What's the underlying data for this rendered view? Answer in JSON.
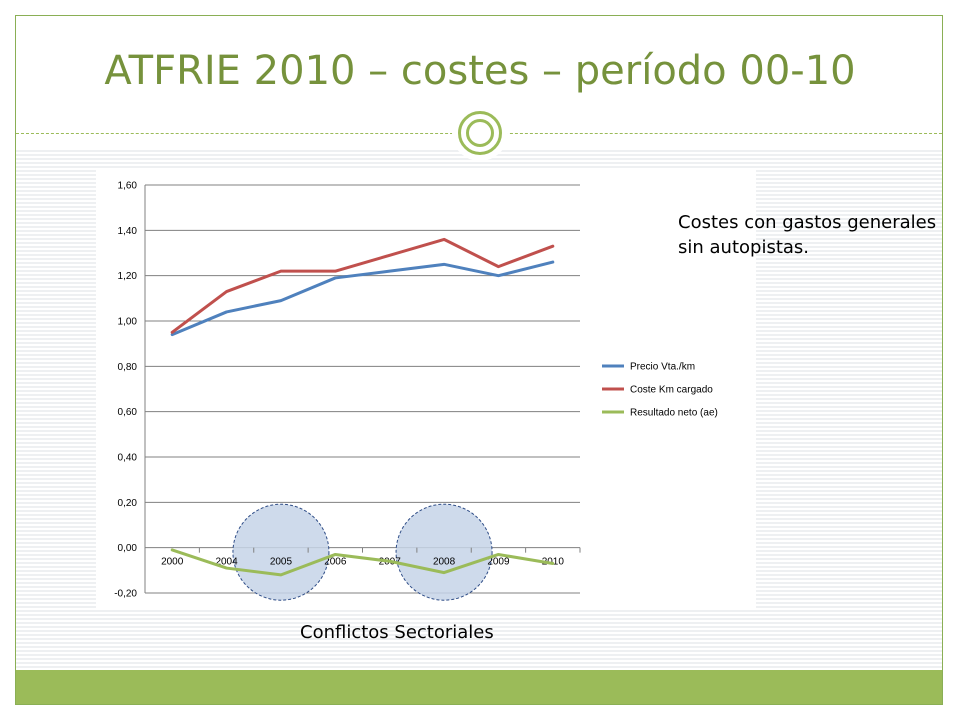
{
  "slide": {
    "title": "ATFRIE 2010 – costes – período 00-10",
    "note": "Costes con gastos generales sin autopistas.",
    "caption": "Conflictos Sectoriales",
    "accent_color": "#9bbb59",
    "title_color": "#76923c"
  },
  "chart_data": {
    "type": "line",
    "categories": [
      "2000",
      "2004",
      "2005",
      "2006",
      "2007",
      "2008",
      "2009",
      "2010"
    ],
    "ylim": [
      -0.2,
      1.6
    ],
    "y_ticks": [
      "-0,20",
      "0,00",
      "0,20",
      "0,40",
      "0,60",
      "0,80",
      "1,00",
      "1,20",
      "1,40",
      "1,60"
    ],
    "y_tick_values": [
      -0.2,
      0,
      0.2,
      0.4,
      0.6,
      0.8,
      1.0,
      1.2,
      1.4,
      1.6
    ],
    "grid": true,
    "legend_position": "right",
    "series": [
      {
        "name": "Precio Vta./km",
        "color": "#4f81bd",
        "values": [
          0.94,
          1.04,
          1.09,
          1.19,
          1.22,
          1.25,
          1.2,
          1.26
        ]
      },
      {
        "name": "Coste Km cargado",
        "color": "#c0504d",
        "values": [
          0.95,
          1.13,
          1.22,
          1.22,
          1.29,
          1.36,
          1.24,
          1.33
        ]
      },
      {
        "name": "Resultado neto (ae)",
        "color": "#9bbb59",
        "values": [
          -0.01,
          -0.09,
          -0.12,
          -0.03,
          -0.06,
          -0.11,
          -0.03,
          -0.07
        ]
      }
    ],
    "highlights": [
      {
        "category": "2005",
        "label_ref": "caption"
      },
      {
        "category": "2008",
        "label_ref": "caption"
      }
    ]
  }
}
